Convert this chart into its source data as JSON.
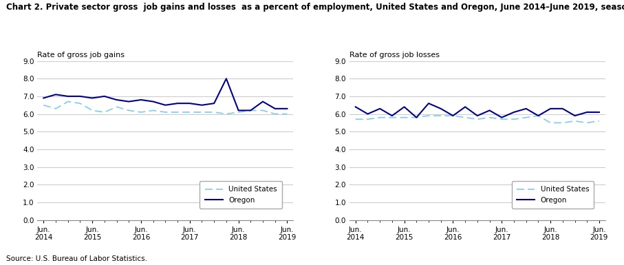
{
  "title_line1": "Chart 2. Private sector gross  job gains and losses  as a percent of employment, United States and Oregon, June 2014–June 2019, seasonally adjusted",
  "title_fontsize": 8.5,
  "left_ylabel": "Rate of gross job gains",
  "right_ylabel": "Rate of gross job losses",
  "x_labels": [
    "Jun.\n2014",
    "Jun.\n2015",
    "Jun.\n2016",
    "Jun.\n2017",
    "Jun.\n2018",
    "Jun.\n2019"
  ],
  "x_positions": [
    0,
    4,
    8,
    12,
    16,
    20
  ],
  "gains_us": [
    6.5,
    6.3,
    6.7,
    6.6,
    6.2,
    6.1,
    6.4,
    6.2,
    6.1,
    6.2,
    6.1,
    6.1,
    6.1,
    6.1,
    6.1,
    6.0,
    6.1,
    6.2,
    6.2,
    6.0,
    6.0
  ],
  "gains_oregon": [
    6.9,
    7.1,
    7.0,
    7.0,
    6.9,
    7.0,
    6.8,
    6.7,
    6.8,
    6.7,
    6.5,
    6.6,
    6.6,
    6.5,
    6.6,
    8.0,
    6.2,
    6.2,
    6.7,
    6.3,
    6.3
  ],
  "losses_us": [
    5.7,
    5.7,
    5.8,
    5.8,
    5.8,
    5.8,
    5.9,
    5.9,
    5.9,
    5.8,
    5.7,
    5.8,
    5.7,
    5.7,
    5.8,
    5.9,
    5.5,
    5.5,
    5.6,
    5.5,
    5.6
  ],
  "losses_oregon": [
    6.4,
    6.0,
    6.3,
    5.9,
    6.4,
    5.8,
    6.6,
    6.3,
    5.9,
    6.4,
    5.9,
    6.2,
    5.8,
    6.1,
    6.3,
    5.9,
    6.3,
    6.3,
    5.9,
    6.1,
    6.1
  ],
  "us_color": "#87CEEB",
  "oregon_color": "#00008B",
  "ylim": [
    0.0,
    9.0
  ],
  "yticks": [
    0.0,
    1.0,
    2.0,
    3.0,
    4.0,
    5.0,
    6.0,
    7.0,
    8.0,
    9.0
  ],
  "source": "Source: U.S. Bureau of Labor Statistics.",
  "background_color": "#ffffff",
  "grid_color": "#cccccc"
}
